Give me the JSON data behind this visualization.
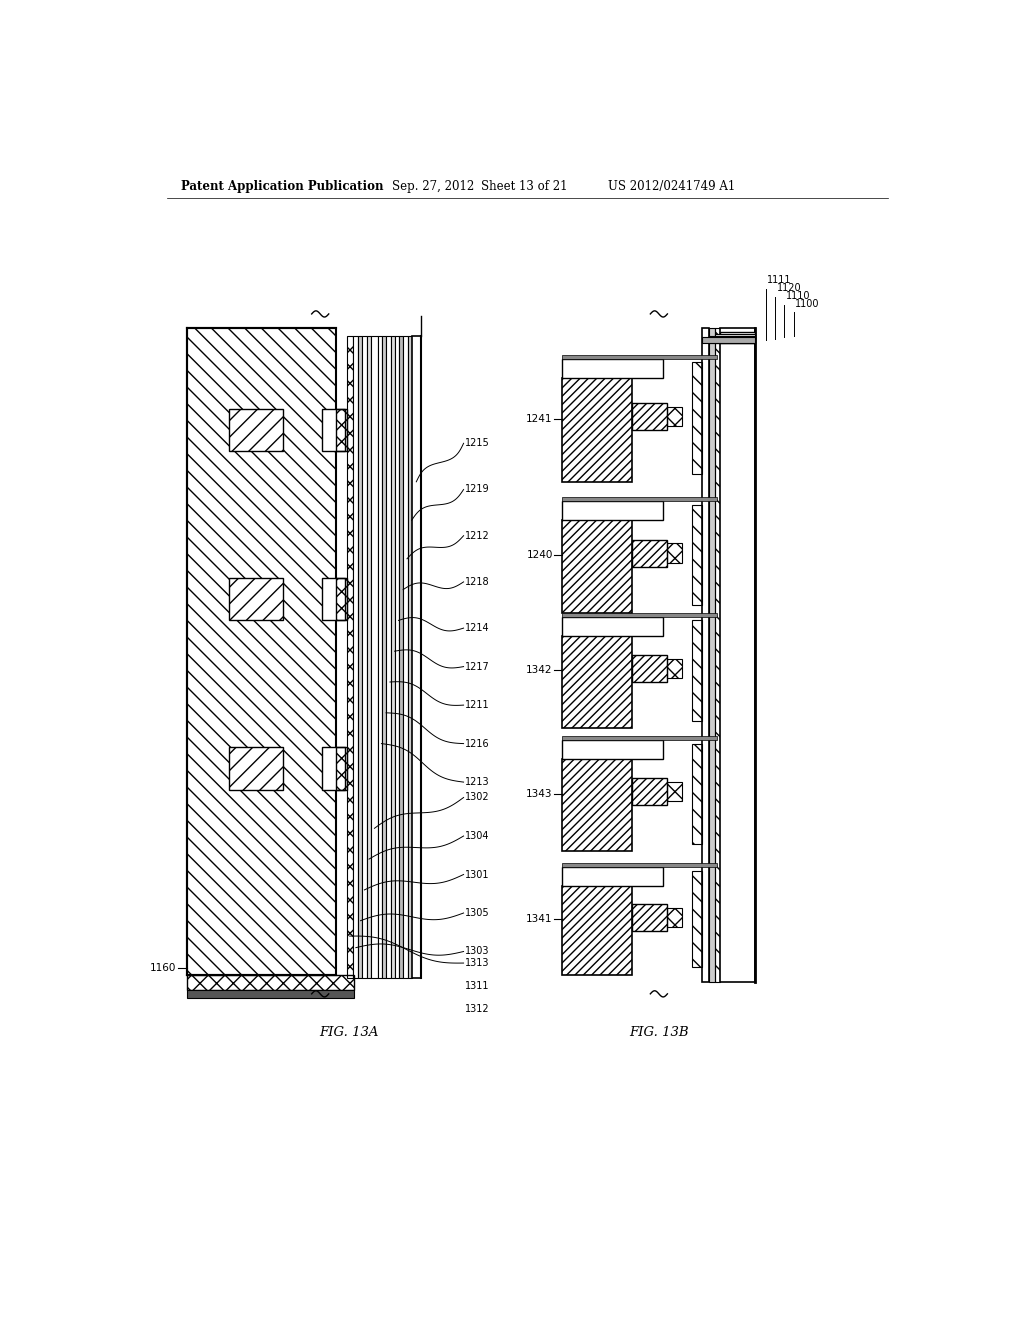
{
  "bg_color": "#ffffff",
  "header_text": "Patent Application Publication",
  "header_date": "Sep. 27, 2012",
  "header_sheet": "Sheet 13 of 21",
  "header_patent": "US 2012/0241749 A1",
  "fig_a_label": "FIG. 13A",
  "fig_b_label": "FIG. 13B",
  "text_color": "#000000",
  "line_color": "#000000",
  "gray_dark": "#444444",
  "gray_med": "#888888",
  "gray_light": "#bbbbbb",
  "gray_xlight": "#dddddd"
}
